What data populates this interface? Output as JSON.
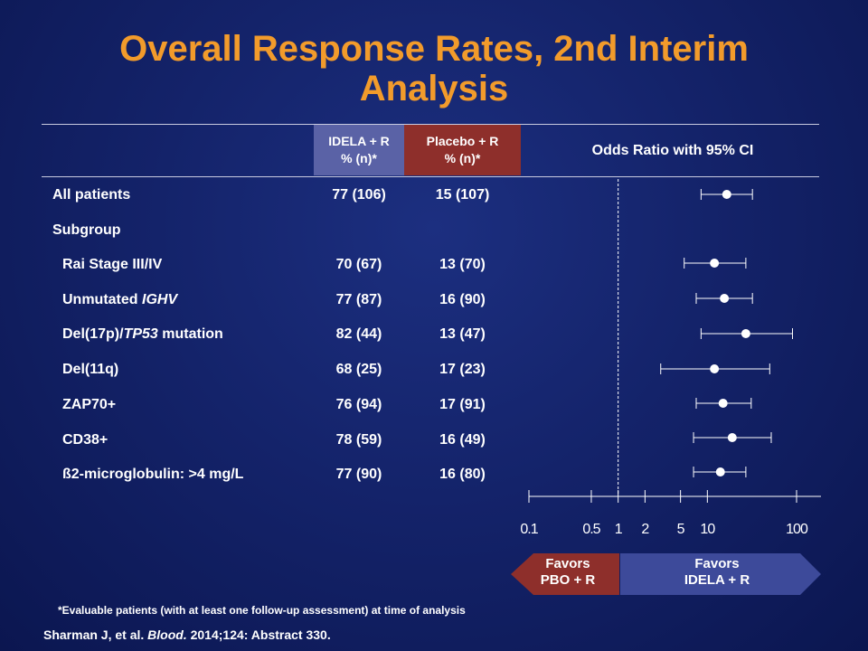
{
  "slide": {
    "title_line1": "Overall Response Rates, 2nd Interim",
    "title_line2": "Analysis",
    "footnote": "*Evaluable patients (with at least one follow-up assessment) at time of analysis",
    "source_prefix": "Sharman J, et al. ",
    "source_journal": "Blood.",
    "source_suffix": " 2014;124: Abstract 330."
  },
  "table": {
    "col_idela_line1": "IDELA + R",
    "col_idela_line2": "% (n)*",
    "col_placebo_line1": "Placebo + R",
    "col_placebo_line2": "% (n)*",
    "col_or": "Odds Ratio with 95% CI",
    "all_patients": {
      "label": "All patients",
      "idela": "77 (106)",
      "placebo": "15 (107)"
    },
    "subgroup_label": "Subgroup",
    "rows": [
      {
        "label_pre": "Rai Stage III/IV",
        "label_em": "",
        "label_post": "",
        "idela": "70 (67)",
        "placebo": "13 (70)"
      },
      {
        "label_pre": "Unmutated ",
        "label_em": "IGHV",
        "label_post": "",
        "idela": "77 (87)",
        "placebo": "16 (90)"
      },
      {
        "label_pre": "Del(17p)/",
        "label_em": "TP53",
        "label_post": " mutation",
        "idela": "82 (44)",
        "placebo": "13 (47)"
      },
      {
        "label_pre": "Del(11q)",
        "label_em": "",
        "label_post": "",
        "idela": "68 (25)",
        "placebo": "17 (23)"
      },
      {
        "label_pre": "ZAP70+",
        "label_em": "",
        "label_post": "",
        "idela": "76 (94)",
        "placebo": "17 (91)"
      },
      {
        "label_pre": "CD38+",
        "label_em": "",
        "label_post": "",
        "idela": "78 (59)",
        "placebo": "16 (49)"
      },
      {
        "label_pre": "ß2-microglobulin: >4 mg/L",
        "label_em": "",
        "label_post": "",
        "idela": "77 (90)",
        "placebo": "16 (80)"
      }
    ]
  },
  "favors": {
    "left_line1": "Favors",
    "left_line2": "PBO + R",
    "right_line1": "Favors",
    "right_line2": "IDELA + R",
    "left_color": "#8e2f2b",
    "right_color": "#3d4a9a"
  },
  "chart_data": {
    "type": "forest",
    "title": "Odds Ratio with 95% CI",
    "scale": "log",
    "xlim": [
      0.1,
      100
    ],
    "reference_line": 1,
    "x_ticks": [
      0.1,
      0.5,
      1,
      2,
      5,
      10,
      100
    ],
    "x_tick_labels": [
      "0.1",
      "0.5",
      "1",
      "2",
      "5",
      "10",
      "100"
    ],
    "points": [
      {
        "name": "All patients",
        "or": 16.5,
        "low": 8.5,
        "high": 32
      },
      {
        "name": "Rai Stage III/IV",
        "or": 12,
        "low": 5.5,
        "high": 27
      },
      {
        "name": "Unmutated IGHV",
        "or": 15.5,
        "low": 7.5,
        "high": 32
      },
      {
        "name": "Del(17p)/TP53 mutation",
        "or": 27,
        "low": 8.5,
        "high": 90
      },
      {
        "name": "Del(11q)",
        "or": 12,
        "low": 3,
        "high": 50
      },
      {
        "name": "ZAP70+",
        "or": 15,
        "low": 7.5,
        "high": 31
      },
      {
        "name": "CD38+",
        "or": 19,
        "low": 7,
        "high": 52
      },
      {
        "name": "ß2-microglobulin: >4 mg/L",
        "or": 14,
        "low": 7,
        "high": 27
      }
    ]
  }
}
